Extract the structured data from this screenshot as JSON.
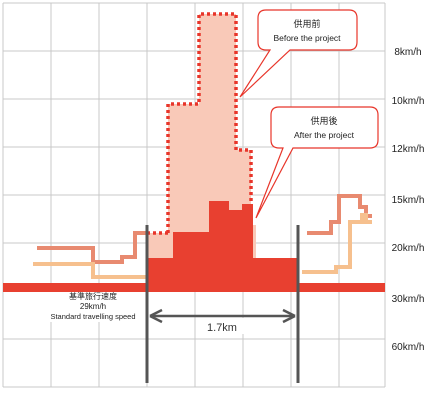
{
  "chart_data": {
    "type": "line",
    "y_axis": {
      "unit": "km/h",
      "tick_labels": [
        "8km/h",
        "10km/h",
        "12km/h",
        "15km/h",
        "20km/h",
        "30km/h",
        "60km/h"
      ]
    },
    "callouts": {
      "before": {
        "line1": "供用前",
        "line2": "Before the project"
      },
      "after": {
        "line1": "供用後",
        "line2": "After the project"
      }
    },
    "baseline": {
      "line1": "基準旅行速度",
      "line2": "29km/h",
      "line3": "Standard travelling speed",
      "speed_kmh": 29
    },
    "section_length_label": "1.7km",
    "colors": {
      "before_outline": "#e8352a",
      "before_fill": "#f9c9b8",
      "after_fill": "#e84030",
      "baseline": "#e84030",
      "speed_line_upper": "#e88a70",
      "speed_line_lower": "#f6c08e",
      "grid": "#c8c8c8",
      "dimension": "#555555"
    }
  }
}
